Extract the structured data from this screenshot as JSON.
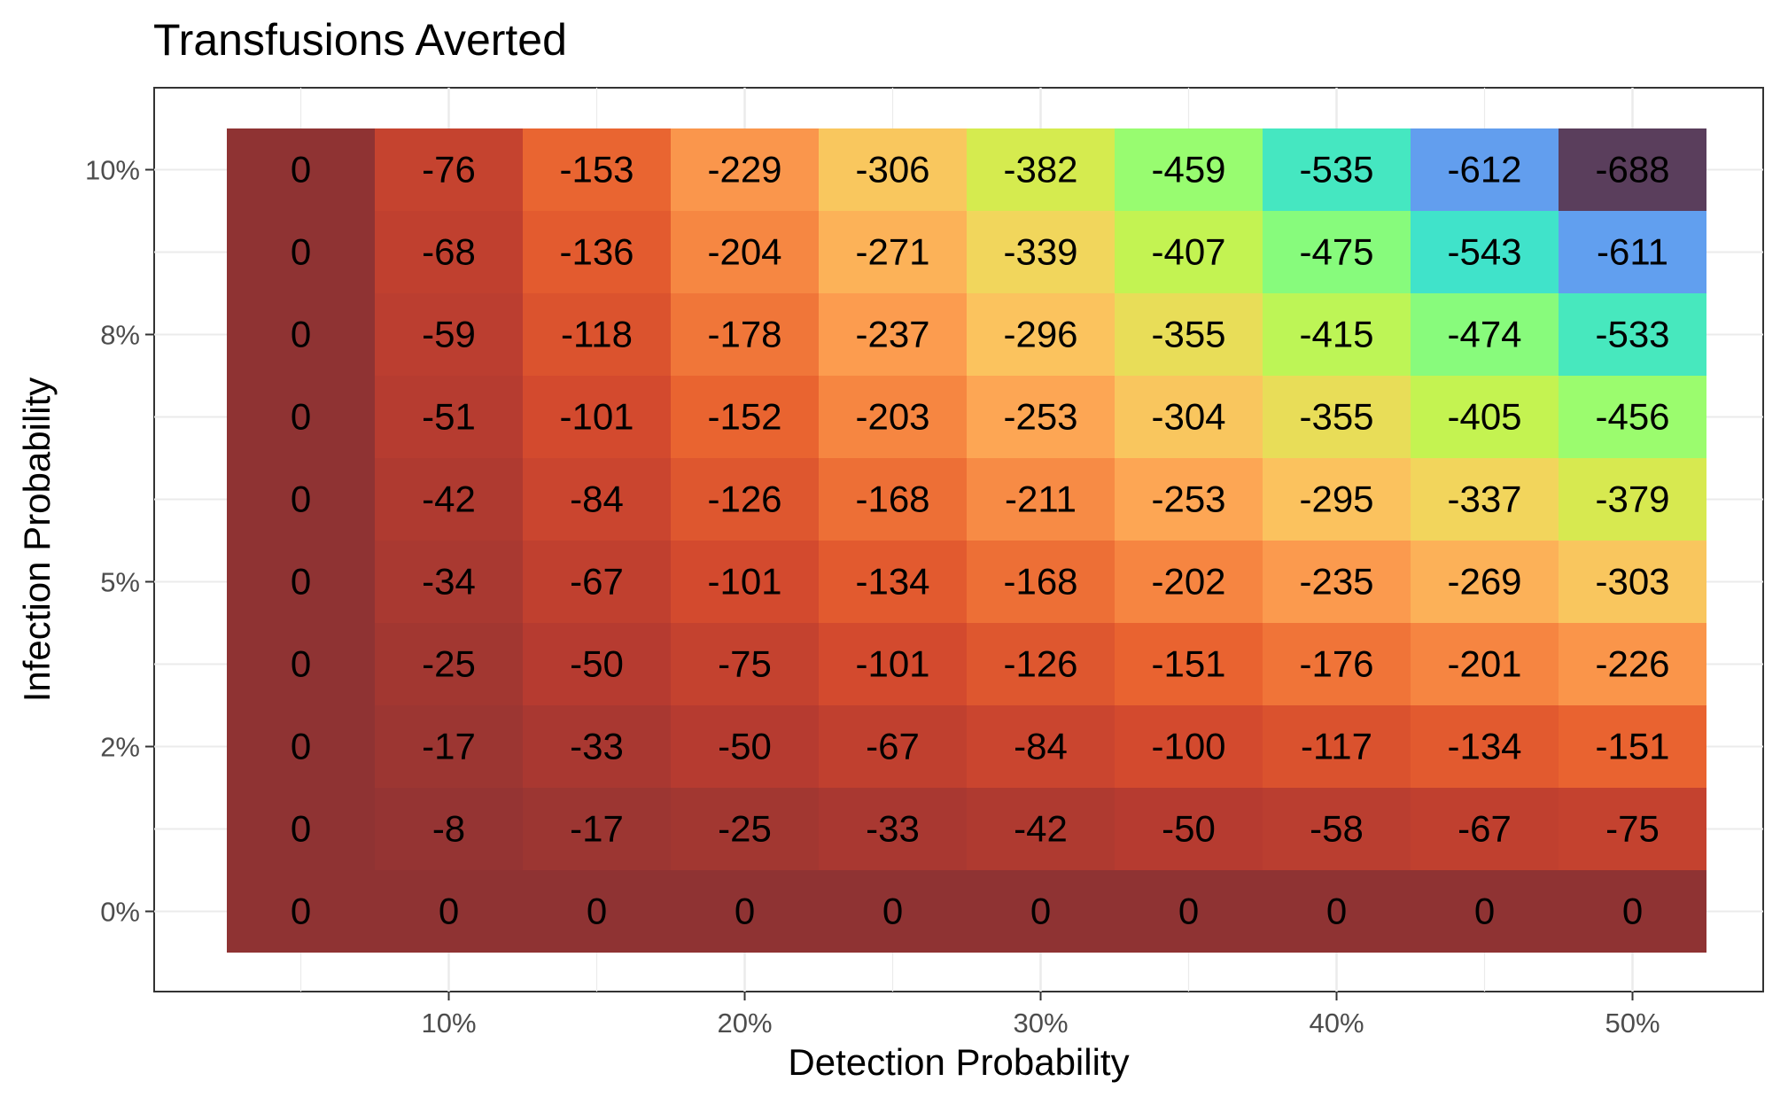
{
  "chart_data": {
    "type": "heatmap",
    "title": "Transfusions Averted",
    "xlabel": "Detection Probability",
    "ylabel": "Infection Probability",
    "x": [
      "5%",
      "10%",
      "15%",
      "20%",
      "25%",
      "30%",
      "35%",
      "40%",
      "45%",
      "50%"
    ],
    "y": [
      "0%",
      "1.1%",
      "2.2%",
      "3.3%",
      "4.4%",
      "5.6%",
      "6.7%",
      "7.8%",
      "8.9%",
      "10%"
    ],
    "x_ticks": [
      "10%",
      "20%",
      "30%",
      "40%",
      "50%"
    ],
    "y_ticks": [
      "0%",
      "2%",
      "5%",
      "8%",
      "10%"
    ],
    "values": [
      [
        0,
        0,
        0,
        0,
        0,
        0,
        0,
        0,
        0,
        0
      ],
      [
        0,
        -8,
        -17,
        -25,
        -33,
        -42,
        -50,
        -58,
        -67,
        -75
      ],
      [
        0,
        -17,
        -33,
        -50,
        -67,
        -84,
        -100,
        -117,
        -134,
        -151
      ],
      [
        0,
        -25,
        -50,
        -75,
        -101,
        -126,
        -151,
        -176,
        -201,
        -226
      ],
      [
        0,
        -34,
        -67,
        -101,
        -134,
        -168,
        -202,
        -235,
        -269,
        -303
      ],
      [
        0,
        -42,
        -84,
        -126,
        -168,
        -211,
        -253,
        -295,
        -337,
        -379
      ],
      [
        0,
        -51,
        -101,
        -152,
        -203,
        -253,
        -304,
        -355,
        -405,
        -456
      ],
      [
        0,
        -59,
        -118,
        -178,
        -237,
        -296,
        -355,
        -415,
        -474,
        -533
      ],
      [
        0,
        -68,
        -136,
        -204,
        -271,
        -339,
        -407,
        -475,
        -543,
        -611
      ],
      [
        0,
        -76,
        -153,
        -229,
        -306,
        -382,
        -459,
        -535,
        -612,
        -688
      ]
    ],
    "value_range": [
      -688,
      0
    ],
    "color_scale": [
      "#5a3e5c",
      "#6b7fe3",
      "#5ab7f8",
      "#3fe5c8",
      "#76fb89",
      "#a9fc63",
      "#cdf04b",
      "#f0d85c",
      "#fbc25e",
      "#fda152",
      "#f5823f",
      "#e8612f",
      "#d2492e",
      "#b53b30",
      "#8f3333"
    ],
    "legend": "none",
    "grid": true
  }
}
